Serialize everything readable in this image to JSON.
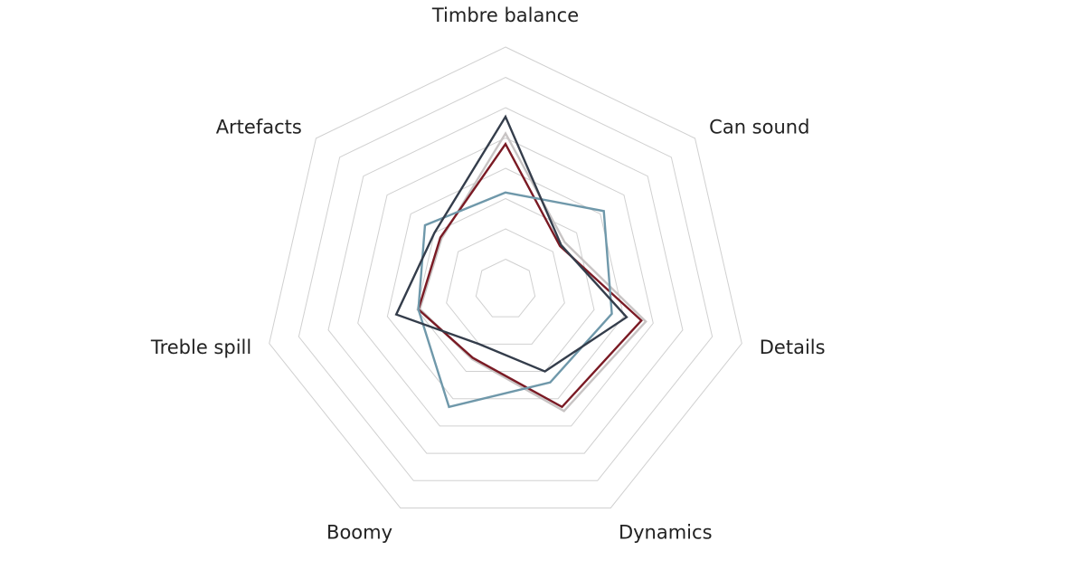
{
  "chart_data": {
    "type": "radar",
    "axes": [
      "Timbre balance",
      "Can sound",
      "Details",
      "Dynamics",
      "Boomy",
      "Treble spill",
      "Artefacts"
    ],
    "rlim": [
      0,
      8
    ],
    "rings": 8,
    "grid": true,
    "legend": "none",
    "series": [
      {
        "color": "#c8c4c4",
        "values": [
          5.15,
          2.5,
          4.75,
          4.45,
          2.55,
          2.9,
          2.7
        ]
      },
      {
        "color": "#7a1a24",
        "values": [
          4.8,
          2.3,
          4.6,
          4.3,
          2.5,
          2.95,
          2.75
        ]
      },
      {
        "color": "#6f98aa",
        "values": [
          3.2,
          4.15,
          3.6,
          3.4,
          4.3,
          2.95,
          3.4
        ]
      },
      {
        "color": "#343d4b",
        "values": [
          5.7,
          2.35,
          4.1,
          3.0,
          2.0,
          3.7,
          3.0
        ]
      }
    ]
  }
}
